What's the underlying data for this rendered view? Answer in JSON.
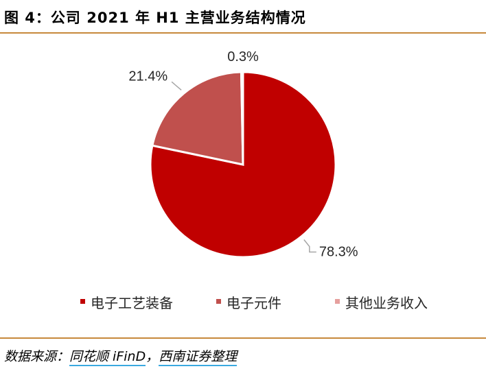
{
  "figure": {
    "title": "图 4：公司 2021 年 H1 主营业务结构情况"
  },
  "source": {
    "prefix": "数据来源：",
    "part1": "同花顺 iFinD",
    "sep": "，",
    "part2": "西南证券整理"
  },
  "chart_data": {
    "type": "pie",
    "labels": [
      "电子工艺装备",
      "电子元件",
      "其他业务收入"
    ],
    "values": [
      78.3,
      21.4,
      0.3
    ],
    "data_labels": [
      "78.3%",
      "21.4%",
      "0.3%"
    ],
    "colors": [
      "#c00000",
      "#c0504d",
      "#e6a09e"
    ],
    "legend_position": "bottom",
    "start_angle_deg": 0,
    "direction": "clockwise"
  }
}
